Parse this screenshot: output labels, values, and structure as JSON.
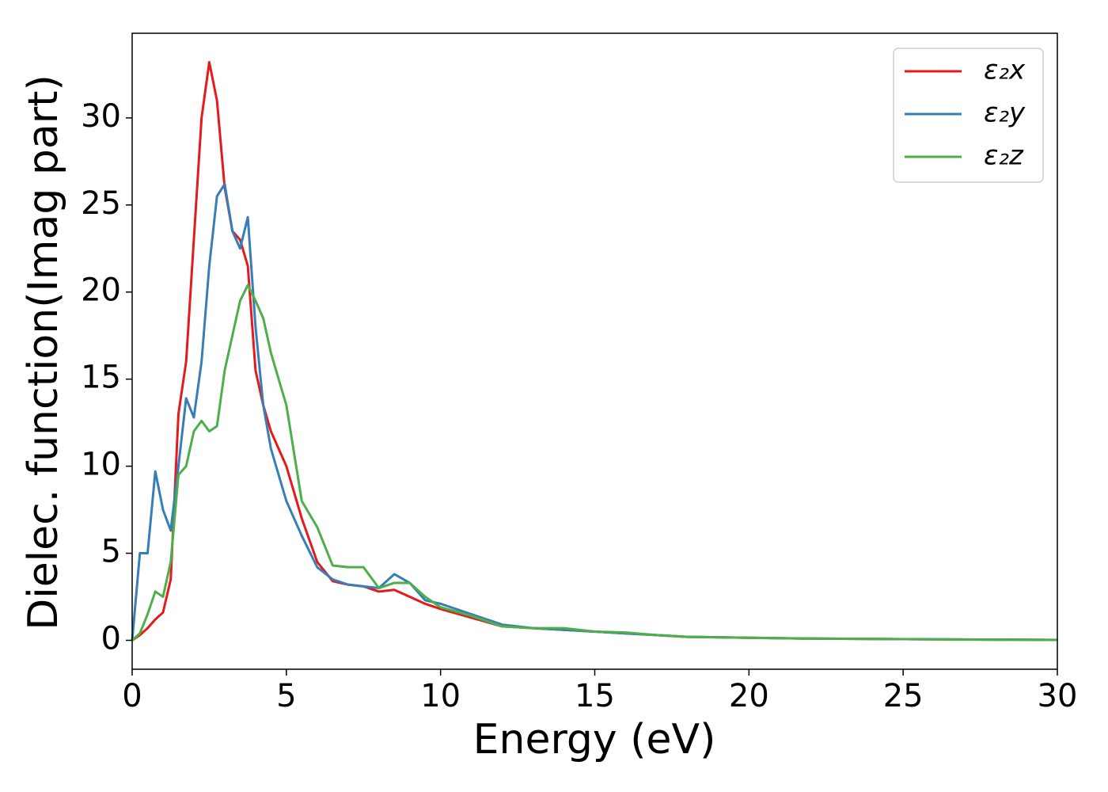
{
  "chart_data": {
    "type": "line",
    "xlabel": "Energy (eV)",
    "ylabel": "Dielec. function(Imag part)",
    "x": [
      0,
      0.25,
      0.5,
      0.75,
      1,
      1.25,
      1.5,
      1.75,
      2,
      2.25,
      2.5,
      2.75,
      3,
      3.25,
      3.5,
      3.75,
      4,
      4.25,
      4.5,
      5,
      5.5,
      6,
      6.5,
      7,
      7.5,
      8,
      8.5,
      9,
      9.5,
      10,
      11,
      12,
      13,
      14,
      15,
      16,
      17,
      18,
      20,
      22,
      25,
      30
    ],
    "series": [
      {
        "name": "ε₂x",
        "color": "#e41a1c",
        "values": [
          0,
          0.3,
          0.7,
          1.2,
          1.6,
          3.5,
          13,
          16,
          23,
          30,
          33.2,
          31,
          26,
          23.5,
          23,
          21.5,
          15.5,
          13.5,
          12,
          10,
          7,
          4.5,
          3.4,
          3.2,
          3.1,
          2.8,
          2.9,
          2.5,
          2.1,
          1.8,
          1.3,
          0.8,
          0.7,
          0.6,
          0.5,
          0.4,
          0.3,
          0.2,
          0.15,
          0.1,
          0.07,
          0.02
        ]
      },
      {
        "name": "ε₂y",
        "color": "#377eb8",
        "values": [
          0,
          5.0,
          5.0,
          9.7,
          7.5,
          6.3,
          10,
          13.9,
          12.8,
          16,
          21.5,
          25.5,
          26.2,
          23.5,
          22.5,
          24.3,
          18,
          13.5,
          11,
          8,
          6,
          4.2,
          3.5,
          3.2,
          3.1,
          3.0,
          3.8,
          3.3,
          2.3,
          2.1,
          1.5,
          0.9,
          0.7,
          0.6,
          0.5,
          0.4,
          0.3,
          0.2,
          0.15,
          0.1,
          0.07,
          0.02
        ]
      },
      {
        "name": "ε₂z",
        "color": "#4daf4a",
        "values": [
          0,
          0.4,
          1.5,
          2.8,
          2.5,
          4.5,
          9.5,
          10,
          12,
          12.6,
          12,
          12.3,
          15.5,
          17.5,
          19.5,
          20.4,
          19.5,
          18.5,
          16.5,
          13.5,
          8,
          6.5,
          4.3,
          4.2,
          4.2,
          3.0,
          3.3,
          3.3,
          2.5,
          1.9,
          1.4,
          0.8,
          0.7,
          0.7,
          0.5,
          0.45,
          0.3,
          0.2,
          0.15,
          0.1,
          0.07,
          0.02
        ]
      }
    ],
    "xlim": [
      0,
      30
    ],
    "xticks": [
      0,
      5,
      10,
      15,
      20,
      25,
      30
    ],
    "ylim": [
      -1.66,
      34.86
    ],
    "yticks": [
      0,
      5,
      10,
      15,
      20,
      25,
      30
    ],
    "legend": "upper right"
  }
}
